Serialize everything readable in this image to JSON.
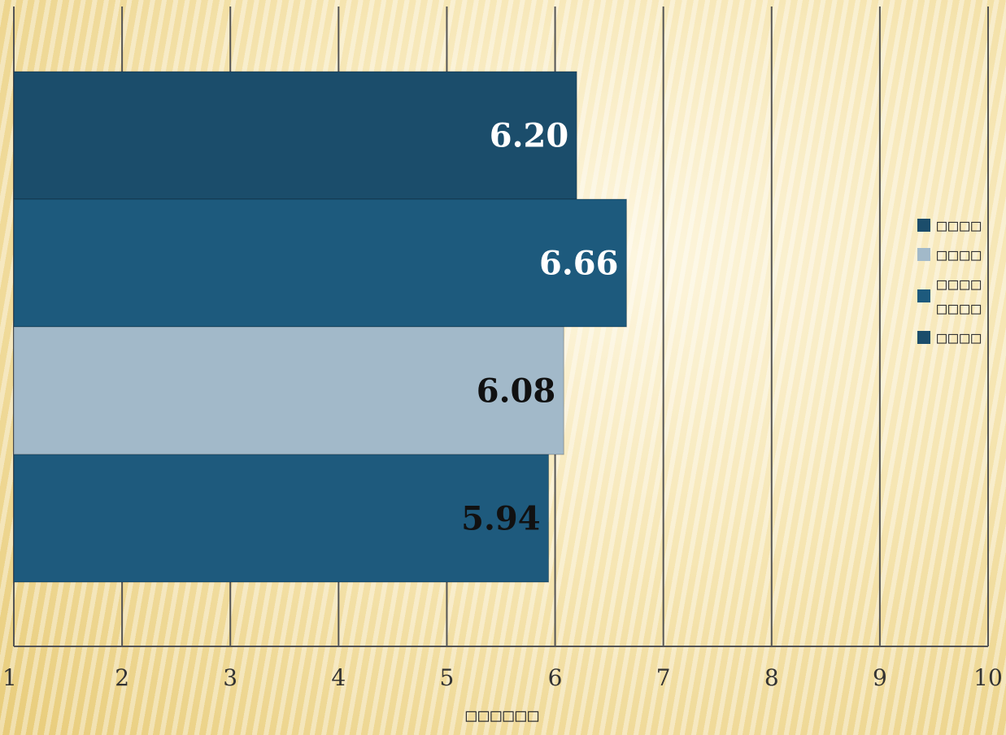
{
  "chart_data": {
    "type": "bar",
    "orientation": "horizontal",
    "categories": [
      "",
      "",
      "",
      ""
    ],
    "values": [
      6.2,
      6.66,
      6.08,
      5.94
    ],
    "data_labels": [
      "6.20",
      "6.66",
      "6.08",
      "5.94"
    ],
    "bar_colors": [
      "#1b4d6b",
      "#1d5a7d",
      "#a2b9c9",
      "#1e5a7d"
    ],
    "label_colors": [
      "#ffffff",
      "#ffffff",
      "#111111",
      "#111111"
    ],
    "xlim": [
      1,
      10
    ],
    "x_ticks": [
      "1",
      "2",
      "3",
      "4",
      "5",
      "6",
      "7",
      "8",
      "9",
      "10"
    ],
    "xlabel": "□□□□□□",
    "grid": true,
    "legend_position": "right",
    "legend": [
      {
        "label": "□□□□",
        "color": "#1b4d6b"
      },
      {
        "label": "□□□□",
        "color": "#a2b9c9"
      },
      {
        "label": "□□□□\n□□□□",
        "color": "#1d5a7d"
      },
      {
        "label": "□□□□",
        "color": "#1b4d6b"
      }
    ]
  }
}
